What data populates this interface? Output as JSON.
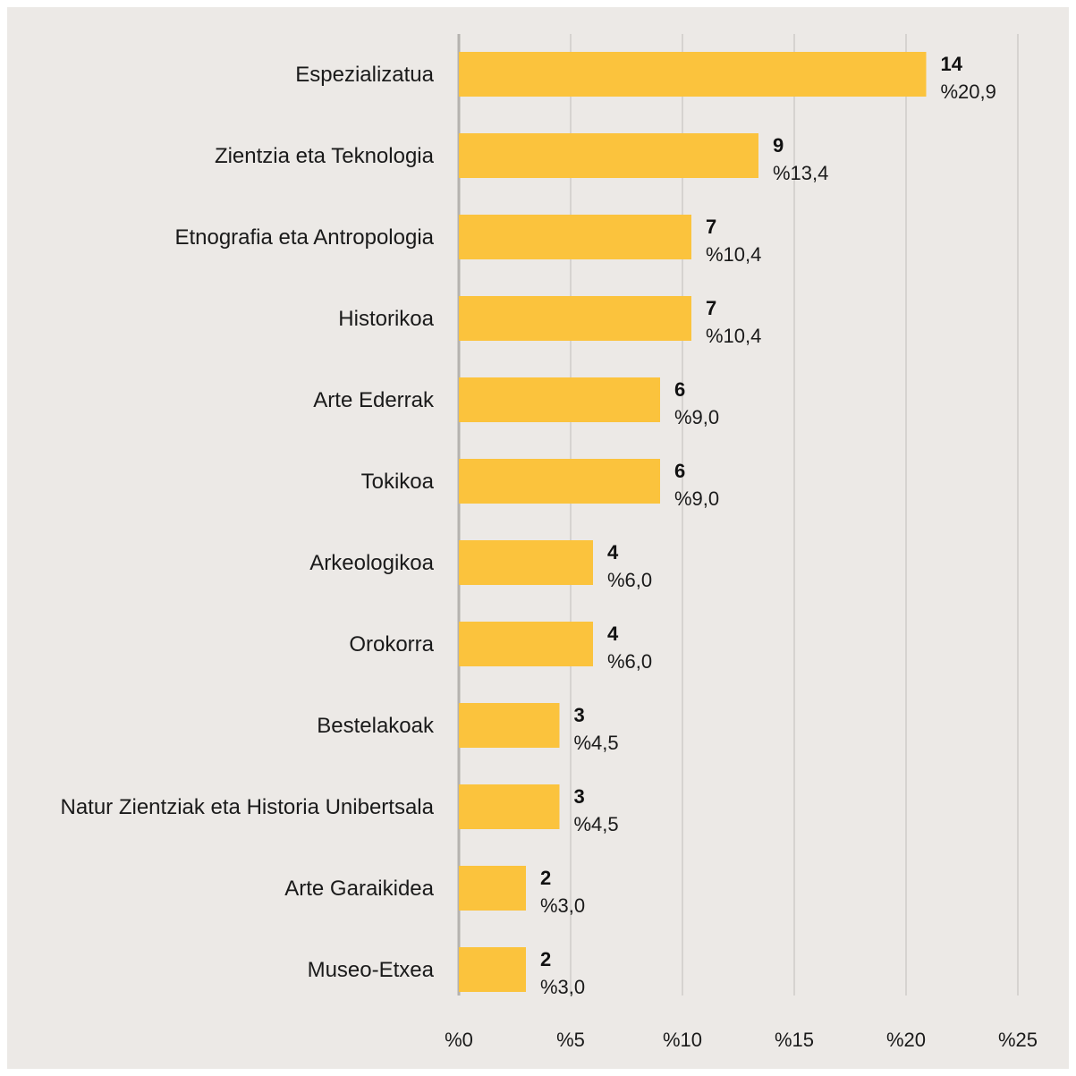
{
  "chart_data": {
    "type": "bar",
    "orientation": "horizontal",
    "categories": [
      "Espezializatua",
      "Zientzia eta Teknologia",
      "Etnografia eta Antropologia",
      "Historikoa",
      "Arte Ederrak",
      "Tokikoa",
      "Arkeologikoa",
      "Orokorra",
      "Bestelakoak",
      "Natur Zientziak eta Historia Unibertsala",
      "Arte Garaikidea",
      "Museo-Etxea"
    ],
    "values": [
      20.9,
      13.4,
      10.4,
      10.4,
      9.0,
      9.0,
      6.0,
      6.0,
      4.5,
      4.5,
      3.0,
      3.0
    ],
    "counts": [
      "14",
      "9",
      "7",
      "7",
      "6",
      "6",
      "4",
      "4",
      "3",
      "3",
      "2",
      "2"
    ],
    "percent_labels": [
      "%20,9",
      "%13,4",
      "%10,4",
      "%10,4",
      "%9,0",
      "%9,0",
      "%6,0",
      "%6,0",
      "%4,5",
      "%4,5",
      "%3,0",
      "%3,0"
    ],
    "xlim": [
      0,
      25
    ],
    "xticks": [
      0,
      5,
      10,
      15,
      20,
      25
    ],
    "xtick_labels": [
      "%0",
      "%5",
      "%10",
      "%15",
      "%20",
      "%25"
    ],
    "grid": true,
    "title": "",
    "xlabel": "",
    "ylabel": ""
  },
  "colors": {
    "bar": "#fbc33d",
    "background": "#ece9e6",
    "grid": "#d6d3d0",
    "axis": "#b5b2af"
  }
}
